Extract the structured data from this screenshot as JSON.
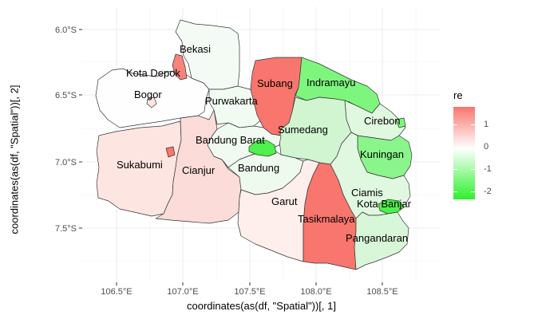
{
  "axes": {
    "xlabel": "coordinates(as(df, \"Spatial\"))[, 1]",
    "ylabel": "coordinates(as(df, \"Spatial\"))[, 2]",
    "x_ticks": [
      "106.5°E",
      "107.0°E",
      "107.5°E",
      "108.0°E",
      "108.5°E"
    ],
    "y_ticks": [
      "6.0°S",
      "6.5°S",
      "7.0°S",
      "7.5°S"
    ]
  },
  "legend": {
    "title": "re",
    "ticks": [
      "1",
      "0",
      "-1",
      "-2"
    ],
    "colors": {
      "high": "#F8766D",
      "mid": "#FFFFFF",
      "low": "#2CF12C"
    }
  },
  "regions": [
    {
      "name": "Bekasi",
      "color": "#F4FBF4"
    },
    {
      "name": "Kota Depok",
      "color": "#F8837A"
    },
    {
      "name": "Bogor",
      "color": "#FFFEFE"
    },
    {
      "name": "Purwakarta",
      "color": "#F2FBF2"
    },
    {
      "name": "Subang",
      "color": "#F8766D"
    },
    {
      "name": "Indramayu",
      "color": "#7EF67E"
    },
    {
      "name": "Cirebon",
      "color": "#E0F8E0"
    },
    {
      "name": "Sumedang",
      "color": "#D0F5D0"
    },
    {
      "name": "Bandung Barat",
      "color": "#F0FAF0"
    },
    {
      "name": "Kuningan",
      "color": "#8AF58A"
    },
    {
      "name": "Sukabumi",
      "color": "#FDE5E2"
    },
    {
      "name": "Cianjur",
      "color": "#FCDCD8"
    },
    {
      "name": "Bandung",
      "color": "#EEFAEE"
    },
    {
      "name": "Garut",
      "color": "#FEEEEC"
    },
    {
      "name": "Ciamis",
      "color": "#E0F8E0"
    },
    {
      "name": "Kota Banjar",
      "color": "#4DF04D"
    },
    {
      "name": "Tasikmalaya",
      "color": "#F8766D"
    },
    {
      "name": "Pangandaran",
      "color": "#D8F7D8"
    }
  ]
}
